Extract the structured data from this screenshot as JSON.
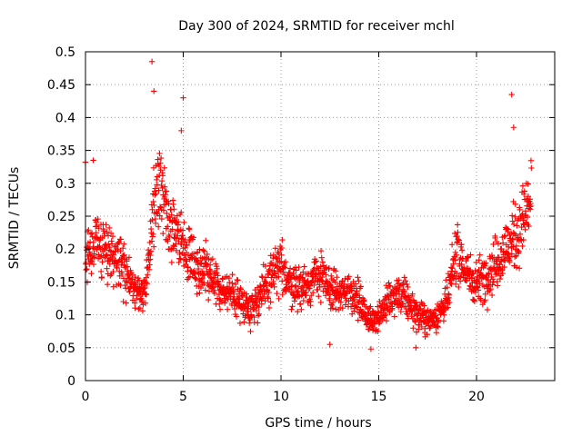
{
  "chart_data": {
    "type": "scatter",
    "title": "Day 300 of 2024, SRMTID for receiver mchl",
    "xlabel": "GPS time / hours",
    "ylabel": "SRMTID / TECUs",
    "xlim": [
      0,
      24
    ],
    "ylim": [
      0,
      0.5
    ],
    "x_ticks": [
      0,
      5,
      10,
      15,
      20
    ],
    "x_tick_labels": [
      "0",
      "5",
      "10",
      "15",
      "20"
    ],
    "y_ticks": [
      0,
      0.05,
      0.1,
      0.15,
      0.2,
      0.25,
      0.3,
      0.35,
      0.4,
      0.45,
      0.5
    ],
    "y_tick_labels": [
      "0",
      "0.05",
      "0.1",
      "0.15",
      "0.2",
      "0.25",
      "0.3",
      "0.35",
      "0.4",
      "0.45",
      "0.5"
    ],
    "grid": true,
    "marker": "plus",
    "color": "#ff0000",
    "x_span": [
      0,
      22.8
    ],
    "trend": {
      "x": [
        0,
        0.5,
        1,
        1.5,
        2,
        2.5,
        3,
        3.3,
        3.5,
        3.8,
        4.2,
        4.9,
        5.5,
        6,
        6.5,
        7,
        7.5,
        8,
        8.5,
        9,
        9.5,
        10,
        10.5,
        11,
        11.5,
        12,
        12.5,
        13,
        13.5,
        14,
        14.5,
        15,
        15.5,
        16,
        16.5,
        17,
        17.5,
        18,
        18.5,
        19,
        19.5,
        20,
        20.5,
        21,
        21.5,
        22,
        22.5,
        22.8
      ],
      "y": [
        0.19,
        0.21,
        0.2,
        0.19,
        0.17,
        0.14,
        0.13,
        0.2,
        0.28,
        0.3,
        0.24,
        0.21,
        0.18,
        0.17,
        0.15,
        0.14,
        0.13,
        0.12,
        0.11,
        0.13,
        0.16,
        0.17,
        0.15,
        0.14,
        0.15,
        0.16,
        0.14,
        0.13,
        0.14,
        0.12,
        0.09,
        0.1,
        0.12,
        0.13,
        0.12,
        0.1,
        0.09,
        0.1,
        0.12,
        0.2,
        0.16,
        0.15,
        0.16,
        0.18,
        0.2,
        0.22,
        0.25,
        0.28
      ]
    },
    "notable_points": [
      {
        "x": 3.4,
        "y": 0.485
      },
      {
        "x": 3.5,
        "y": 0.44
      },
      {
        "x": 5.0,
        "y": 0.43
      },
      {
        "x": 4.9,
        "y": 0.38
      },
      {
        "x": 21.8,
        "y": 0.435
      },
      {
        "x": 21.9,
        "y": 0.385
      },
      {
        "x": 0.4,
        "y": 0.335
      },
      {
        "x": 12.5,
        "y": 0.055
      },
      {
        "x": 14.6,
        "y": 0.048
      },
      {
        "x": 16.9,
        "y": 0.05
      }
    ]
  }
}
